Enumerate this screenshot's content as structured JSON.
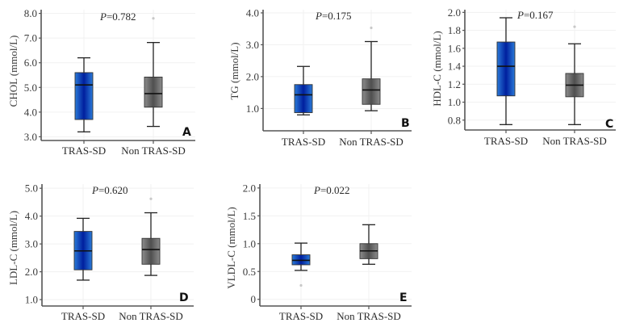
{
  "chart_data": [
    {
      "type": "box",
      "panel_label": "A",
      "ylabel": "CHOL (mmol/L)",
      "p_label": "P",
      "p_value": "=0.782",
      "ylim": [
        2.85,
        8.15
      ],
      "yticks": [
        3.0,
        4.0,
        5.0,
        6.0,
        7.0,
        8.0
      ],
      "ytick_labels": [
        "3.0",
        "4.0",
        "5.0",
        "6.0",
        "7.0",
        "8.0"
      ],
      "categories": [
        "TRAS-SD",
        "Non TRAS-SD"
      ],
      "groups": [
        {
          "name": "TRAS-SD",
          "whisker_low": 3.2,
          "q1": 3.7,
          "median": 5.1,
          "q3": 5.6,
          "whisker_high": 6.2,
          "outliers": []
        },
        {
          "name": "Non TRAS-SD",
          "whisker_low": 3.42,
          "q1": 4.2,
          "median": 4.75,
          "q3": 5.42,
          "whisker_high": 6.82,
          "outliers": [
            7.8
          ]
        }
      ]
    },
    {
      "type": "box",
      "panel_label": "B",
      "ylabel": "TG (mmol/L)",
      "p_label": "P",
      "p_value": "=0.175",
      "ylim": [
        0.3,
        4.1
      ],
      "yticks": [
        1.0,
        2.0,
        3.0,
        4.0
      ],
      "ytick_labels": [
        "1.0",
        "2.0",
        "3.0",
        "4.0"
      ],
      "categories": [
        "TRAS-SD",
        "Non TRAS-SD"
      ],
      "groups": [
        {
          "name": "TRAS-SD",
          "whisker_low": 0.8,
          "q1": 0.87,
          "median": 1.43,
          "q3": 1.75,
          "whisker_high": 2.32,
          "outliers": []
        },
        {
          "name": "Non TRAS-SD",
          "whisker_low": 0.93,
          "q1": 1.13,
          "median": 1.58,
          "q3": 1.93,
          "whisker_high": 3.1,
          "outliers": [
            3.53
          ]
        }
      ]
    },
    {
      "type": "box",
      "panel_label": "C",
      "ylabel": "HDL-C (mmol/L)",
      "p_label": "P",
      "p_value": "=0.167",
      "ylim": [
        0.69,
        2.03
      ],
      "yticks": [
        0.8,
        1.0,
        1.2,
        1.4,
        1.6,
        1.8,
        2.0
      ],
      "ytick_labels": [
        "0.8",
        "1.0",
        "1.2",
        "1.4",
        "1.6",
        "1.8",
        "2.0"
      ],
      "categories": [
        "TRAS-SD",
        "Non TRAS-SD"
      ],
      "groups": [
        {
          "name": "TRAS-SD",
          "whisker_low": 0.75,
          "q1": 1.07,
          "median": 1.4,
          "q3": 1.67,
          "whisker_high": 1.94,
          "outliers": []
        },
        {
          "name": "Non TRAS-SD",
          "whisker_low": 0.75,
          "q1": 1.06,
          "median": 1.19,
          "q3": 1.32,
          "whisker_high": 1.65,
          "outliers": [
            1.84
          ]
        }
      ]
    },
    {
      "type": "box",
      "panel_label": "D",
      "ylabel": "LDL-C (mmol/L)",
      "p_label": "P",
      "p_value": "=0.620",
      "ylim": [
        0.77,
        5.15
      ],
      "yticks": [
        1.0,
        2.0,
        3.0,
        4.0,
        5.0
      ],
      "ytick_labels": [
        "1.0",
        "2.0",
        "3.0",
        "4.0",
        "5.0"
      ],
      "categories": [
        "TRAS-SD",
        "Non TRAS-SD"
      ],
      "groups": [
        {
          "name": "TRAS-SD",
          "whisker_low": 1.7,
          "q1": 2.07,
          "median": 2.75,
          "q3": 3.45,
          "whisker_high": 3.92,
          "outliers": []
        },
        {
          "name": "Non TRAS-SD",
          "whisker_low": 1.87,
          "q1": 2.27,
          "median": 2.8,
          "q3": 3.2,
          "whisker_high": 4.12,
          "outliers": [
            4.62
          ]
        }
      ]
    },
    {
      "type": "box",
      "panel_label": "E",
      "ylabel": "VLDL-C (mmol/L)",
      "p_label": "P",
      "p_value": "=0.022",
      "ylim": [
        -0.12,
        2.07
      ],
      "yticks": [
        0,
        0.5,
        1.0,
        1.5,
        2.0
      ],
      "ytick_labels": [
        "0",
        "0.5",
        "1.0",
        "1.5",
        "2.0"
      ],
      "categories": [
        "TRAS-SD",
        "Non TRAS-SD"
      ],
      "groups": [
        {
          "name": "TRAS-SD",
          "whisker_low": 0.52,
          "q1": 0.62,
          "median": 0.7,
          "q3": 0.8,
          "whisker_high": 1.01,
          "outliers": [
            0.25
          ]
        },
        {
          "name": "Non TRAS-SD",
          "whisker_low": 0.63,
          "q1": 0.73,
          "median": 0.87,
          "q3": 1.0,
          "whisker_high": 1.34,
          "outliers": []
        }
      ]
    }
  ],
  "colors": {
    "tras_box_edge": "#2a7ad8",
    "tras_box_center": "#001f9e",
    "non_box_edge": "#8c8c8c",
    "non_box_center": "#4f4f4f"
  }
}
